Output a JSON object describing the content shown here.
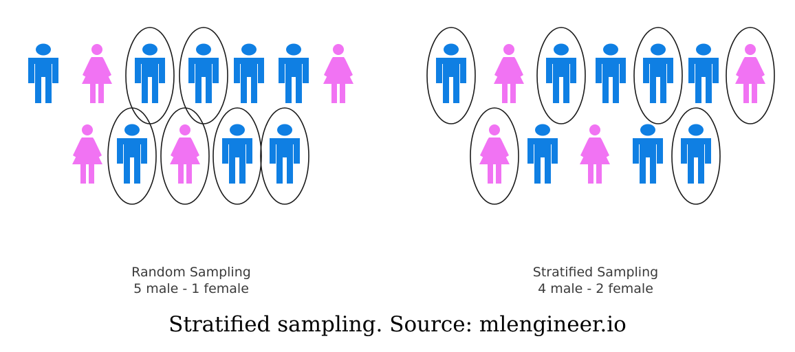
{
  "colors": {
    "male": "#0f7fe3",
    "female": "#f173f3",
    "outline": "#1a1a1a"
  },
  "icons": {
    "male": "male-person-icon",
    "female": "female-person-icon"
  },
  "panels": [
    {
      "id": "random",
      "label": "Random Sampling",
      "counts": "5 male - 1 female",
      "rows": [
        [
          {
            "gender": "male",
            "selected": false
          },
          {
            "gender": "female",
            "selected": false
          },
          {
            "gender": "male",
            "selected": true
          },
          {
            "gender": "male",
            "selected": true
          },
          {
            "gender": "male",
            "selected": false
          },
          {
            "gender": "male",
            "selected": false
          },
          {
            "gender": "female",
            "selected": false
          }
        ],
        [
          {
            "gender": "female",
            "selected": false
          },
          {
            "gender": "male",
            "selected": true
          },
          {
            "gender": "female",
            "selected": true
          },
          {
            "gender": "male",
            "selected": true
          },
          {
            "gender": "male",
            "selected": true
          }
        ]
      ]
    },
    {
      "id": "stratified",
      "label": "Stratified Sampling",
      "counts": "4 male - 2 female",
      "rows": [
        [
          {
            "gender": "male",
            "selected": true
          },
          {
            "gender": "female",
            "selected": false
          },
          {
            "gender": "male",
            "selected": true
          },
          {
            "gender": "male",
            "selected": false
          },
          {
            "gender": "male",
            "selected": true
          },
          {
            "gender": "male",
            "selected": false
          },
          {
            "gender": "female",
            "selected": true
          }
        ],
        [
          {
            "gender": "female",
            "selected": true
          },
          {
            "gender": "male",
            "selected": false
          },
          {
            "gender": "female",
            "selected": false
          },
          {
            "gender": "male",
            "selected": false
          },
          {
            "gender": "male",
            "selected": true
          }
        ]
      ]
    }
  ],
  "caption": "Stratified sampling. Source: mlengineer.io"
}
